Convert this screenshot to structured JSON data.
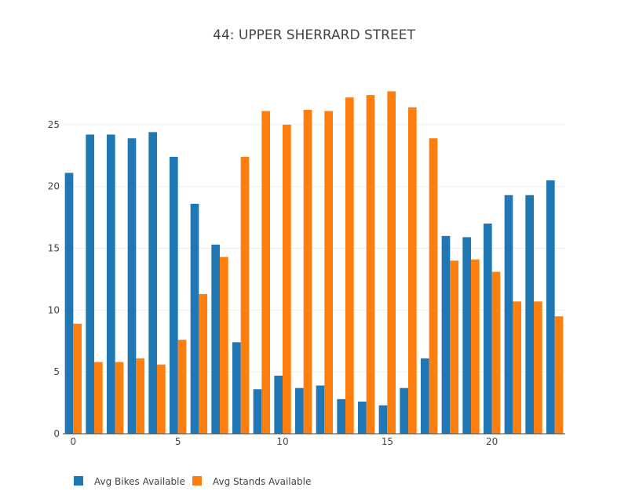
{
  "chart_data": {
    "type": "bar",
    "title": "44: UPPER SHERRARD STREET",
    "xlabel": "",
    "ylabel": "",
    "x": [
      0,
      1,
      2,
      3,
      4,
      5,
      6,
      7,
      8,
      9,
      10,
      11,
      12,
      13,
      14,
      15,
      16,
      17,
      18,
      19,
      20,
      21,
      22,
      23
    ],
    "xlim": [
      -0.5,
      23.5
    ],
    "ylim": [
      0,
      29.5
    ],
    "x_ticks": [
      0,
      5,
      10,
      15,
      20
    ],
    "y_ticks": [
      0,
      5,
      10,
      15,
      20,
      25
    ],
    "grid": true,
    "legend_position": "bottom-left",
    "series": [
      {
        "name": "Avg Bikes Available",
        "color": "#1f77b4",
        "values": [
          21.1,
          24.2,
          24.2,
          23.9,
          24.4,
          22.4,
          18.6,
          15.3,
          7.4,
          3.6,
          4.7,
          3.7,
          3.9,
          2.8,
          2.6,
          2.3,
          3.7,
          6.1,
          16.0,
          15.9,
          17.0,
          19.3,
          19.3,
          20.5
        ]
      },
      {
        "name": "Avg Stands Available",
        "color": "#ff7f0e",
        "values": [
          8.9,
          5.8,
          5.8,
          6.1,
          5.6,
          7.6,
          11.3,
          14.3,
          22.4,
          26.1,
          25.0,
          26.2,
          26.1,
          27.2,
          27.4,
          27.7,
          26.4,
          23.9,
          14.0,
          14.1,
          13.1,
          10.7,
          10.7,
          9.5
        ]
      }
    ]
  }
}
